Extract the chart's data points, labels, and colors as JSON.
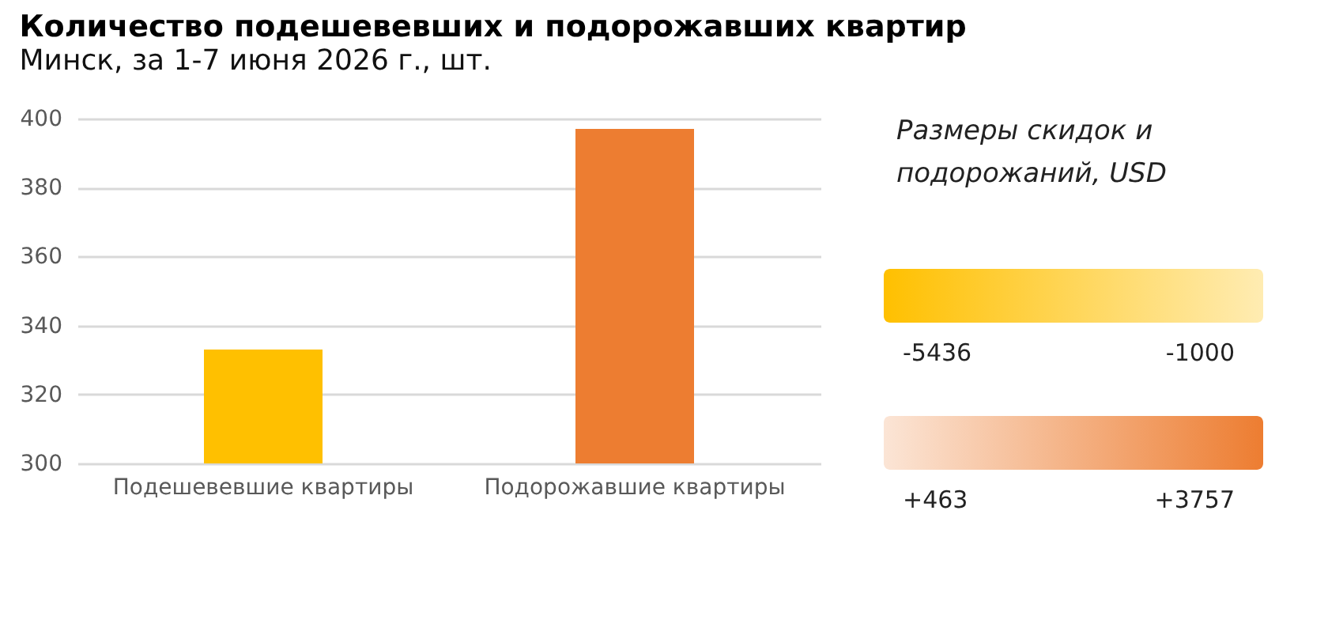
{
  "chart_data": {
    "type": "bar",
    "title": "Количество подешевевших и подорожавших квартир",
    "subtitle": "Минск, за 1-7 июня 2026 г., шт.",
    "categories": [
      "Подешевевшие квартиры",
      "Подорожавшие квартиры"
    ],
    "values": [
      333,
      397
    ],
    "colors": [
      "#ffc000",
      "#ed7d31"
    ],
    "ylim": [
      300,
      400
    ],
    "yticks": [
      300,
      320,
      340,
      360,
      380,
      400
    ],
    "grid": "y",
    "legend": false,
    "annotations": [
      "Размеры скидок и подорожаний, USD",
      "-5436",
      "-1000",
      "+463",
      "+3757"
    ]
  }
}
